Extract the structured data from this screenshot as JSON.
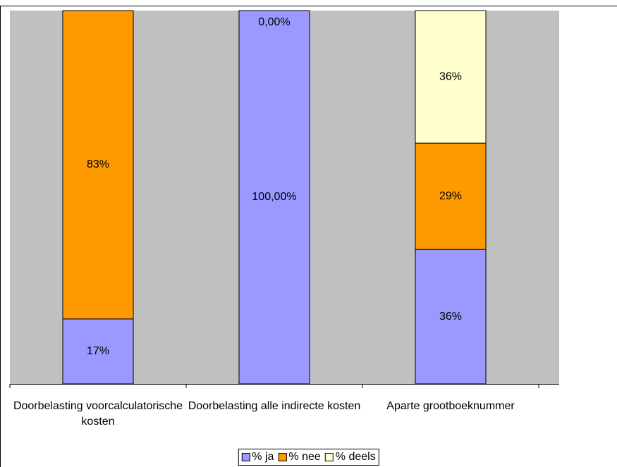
{
  "chart_data": {
    "type": "stacked_bar_100",
    "categories": [
      "Doorbelasting voorcalculatorische kosten",
      "Doorbelasting alle indirecte kosten",
      "Aparte grootboeknummer"
    ],
    "series": [
      {
        "name": "% ja",
        "color": "#9999ff",
        "values": [
          17.4,
          100,
          36
        ],
        "value_labels": [
          "17%",
          "100,00%",
          "36%"
        ]
      },
      {
        "name": "% nee",
        "color": "#ff9900",
        "values": [
          82.6,
          0,
          28.5
        ],
        "value_labels": [
          "83%",
          "0,00%",
          "29%"
        ]
      },
      {
        "name": "% deels",
        "color": "#ffffcc",
        "values": [
          0,
          0,
          35.5
        ],
        "value_labels": [
          null,
          null,
          "36%"
        ]
      }
    ],
    "ylim": [
      0,
      100
    ],
    "legend": "bottom",
    "background": "#c0c0c0"
  }
}
